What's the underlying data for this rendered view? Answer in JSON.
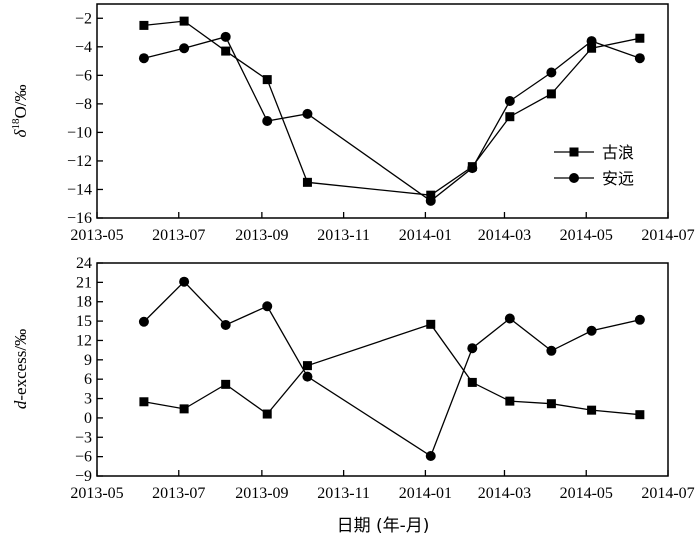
{
  "chart_data": [
    {
      "type": "line",
      "ylabel": "δ18O/‰",
      "ylabel_parts": [
        "δ",
        "18",
        "O/‰"
      ],
      "ylim": [
        -16,
        -1
      ],
      "yticks": [
        -2,
        -4,
        -6,
        -8,
        -10,
        -12,
        -14,
        -16
      ],
      "xlim": [
        "2013-05",
        "2014-07"
      ],
      "xticks": [
        "2013-05",
        "2013-07",
        "2013-09",
        "2013-11",
        "2014-01",
        "2014-03",
        "2014-05",
        "2014-07"
      ],
      "grid": false,
      "legend": "right",
      "series": [
        {
          "name": "古浪",
          "marker": "square",
          "points": [
            {
              "date": "2013-06-05",
              "value": -2.5
            },
            {
              "date": "2013-07-05",
              "value": -2.2
            },
            {
              "date": "2013-08-05",
              "value": -4.3
            },
            {
              "date": "2013-09-05",
              "value": -6.3
            },
            {
              "date": "2013-10-05",
              "value": -13.5
            },
            {
              "date": "2014-01-05",
              "value": -14.4
            },
            {
              "date": "2014-02-05",
              "value": -12.4
            },
            {
              "date": "2014-03-05",
              "value": -8.9
            },
            {
              "date": "2014-04-05",
              "value": -7.3
            },
            {
              "date": "2014-05-05",
              "value": -4.1
            },
            {
              "date": "2014-06-10",
              "value": -3.4
            }
          ]
        },
        {
          "name": "安远",
          "marker": "circle",
          "points": [
            {
              "date": "2013-06-05",
              "value": -4.8
            },
            {
              "date": "2013-07-05",
              "value": -4.1
            },
            {
              "date": "2013-08-05",
              "value": -3.3
            },
            {
              "date": "2013-09-05",
              "value": -9.2
            },
            {
              "date": "2013-10-05",
              "value": -8.7
            },
            {
              "date": "2014-01-05",
              "value": -14.8
            },
            {
              "date": "2014-02-05",
              "value": -12.5
            },
            {
              "date": "2014-03-05",
              "value": -7.8
            },
            {
              "date": "2014-04-05",
              "value": -5.8
            },
            {
              "date": "2014-05-05",
              "value": -3.6
            },
            {
              "date": "2014-06-10",
              "value": -4.8
            }
          ]
        }
      ]
    },
    {
      "type": "line",
      "ylabel": "d-excess/‰",
      "ylabel_parts": [
        "d",
        "-excess/‰"
      ],
      "xlabel": "日期 (年-月)",
      "ylim": [
        -9,
        24
      ],
      "yticks": [
        24,
        21,
        18,
        15,
        12,
        9,
        6,
        3,
        0,
        -3,
        -6,
        -9
      ],
      "xlim": [
        "2013-05",
        "2014-07"
      ],
      "xticks": [
        "2013-05",
        "2013-07",
        "2013-09",
        "2013-11",
        "2014-01",
        "2014-03",
        "2014-05",
        "2014-07"
      ],
      "grid": false,
      "series": [
        {
          "name": "古浪",
          "marker": "square",
          "points": [
            {
              "date": "2013-06-05",
              "value": 2.5
            },
            {
              "date": "2013-07-05",
              "value": 1.4
            },
            {
              "date": "2013-08-05",
              "value": 5.2
            },
            {
              "date": "2013-09-05",
              "value": 0.6
            },
            {
              "date": "2013-10-05",
              "value": 8.1
            },
            {
              "date": "2014-01-05",
              "value": 14.5
            },
            {
              "date": "2014-02-05",
              "value": 5.5
            },
            {
              "date": "2014-03-05",
              "value": 2.6
            },
            {
              "date": "2014-04-05",
              "value": 2.2
            },
            {
              "date": "2014-05-05",
              "value": 1.2
            },
            {
              "date": "2014-06-10",
              "value": 0.5
            }
          ]
        },
        {
          "name": "安远",
          "marker": "circle",
          "points": [
            {
              "date": "2013-06-05",
              "value": 14.9
            },
            {
              "date": "2013-07-05",
              "value": 21.1
            },
            {
              "date": "2013-08-05",
              "value": 14.4
            },
            {
              "date": "2013-09-05",
              "value": 17.3
            },
            {
              "date": "2013-10-05",
              "value": 6.4
            },
            {
              "date": "2014-01-05",
              "value": -5.9
            },
            {
              "date": "2014-02-05",
              "value": 10.8
            },
            {
              "date": "2014-03-05",
              "value": 15.4
            },
            {
              "date": "2014-04-05",
              "value": 10.4
            },
            {
              "date": "2014-05-05",
              "value": 13.5
            },
            {
              "date": "2014-06-10",
              "value": 15.2
            }
          ]
        }
      ]
    }
  ]
}
